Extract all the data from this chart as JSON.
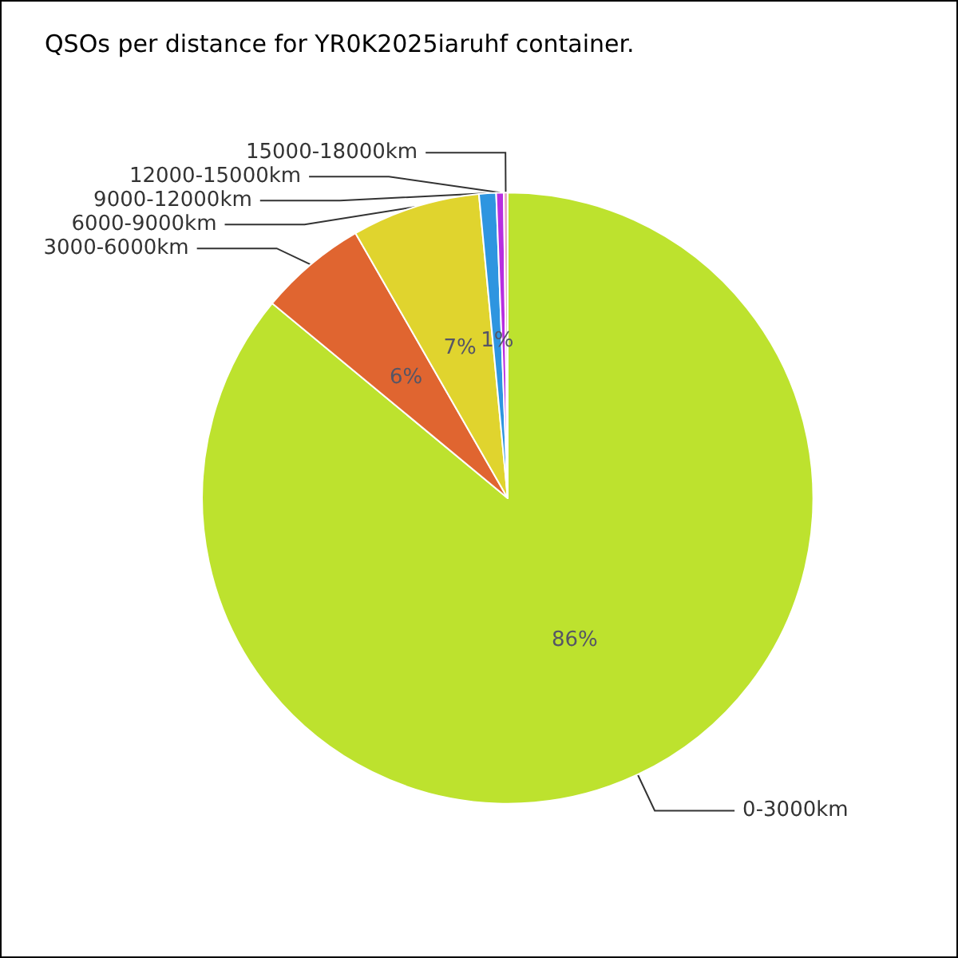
{
  "chart_data": {
    "type": "pie",
    "title": "QSOs per distance for YR0K2025iaruhf container.",
    "categories": [
      "0-3000km",
      "3000-6000km",
      "6000-9000km",
      "9000-12000km",
      "12000-15000km",
      "15000-18000km"
    ],
    "values": [
      86,
      5.7,
      6.8,
      0.9,
      0.4,
      0.2
    ],
    "value_labels": [
      "86%",
      "6%",
      "7%",
      "1%",
      null,
      null
    ],
    "colors": [
      "#bde22e",
      "#e06530",
      "#e0d42e",
      "#2e95e0",
      "#b82ee0",
      "#e8a0c0"
    ],
    "legend": false
  }
}
